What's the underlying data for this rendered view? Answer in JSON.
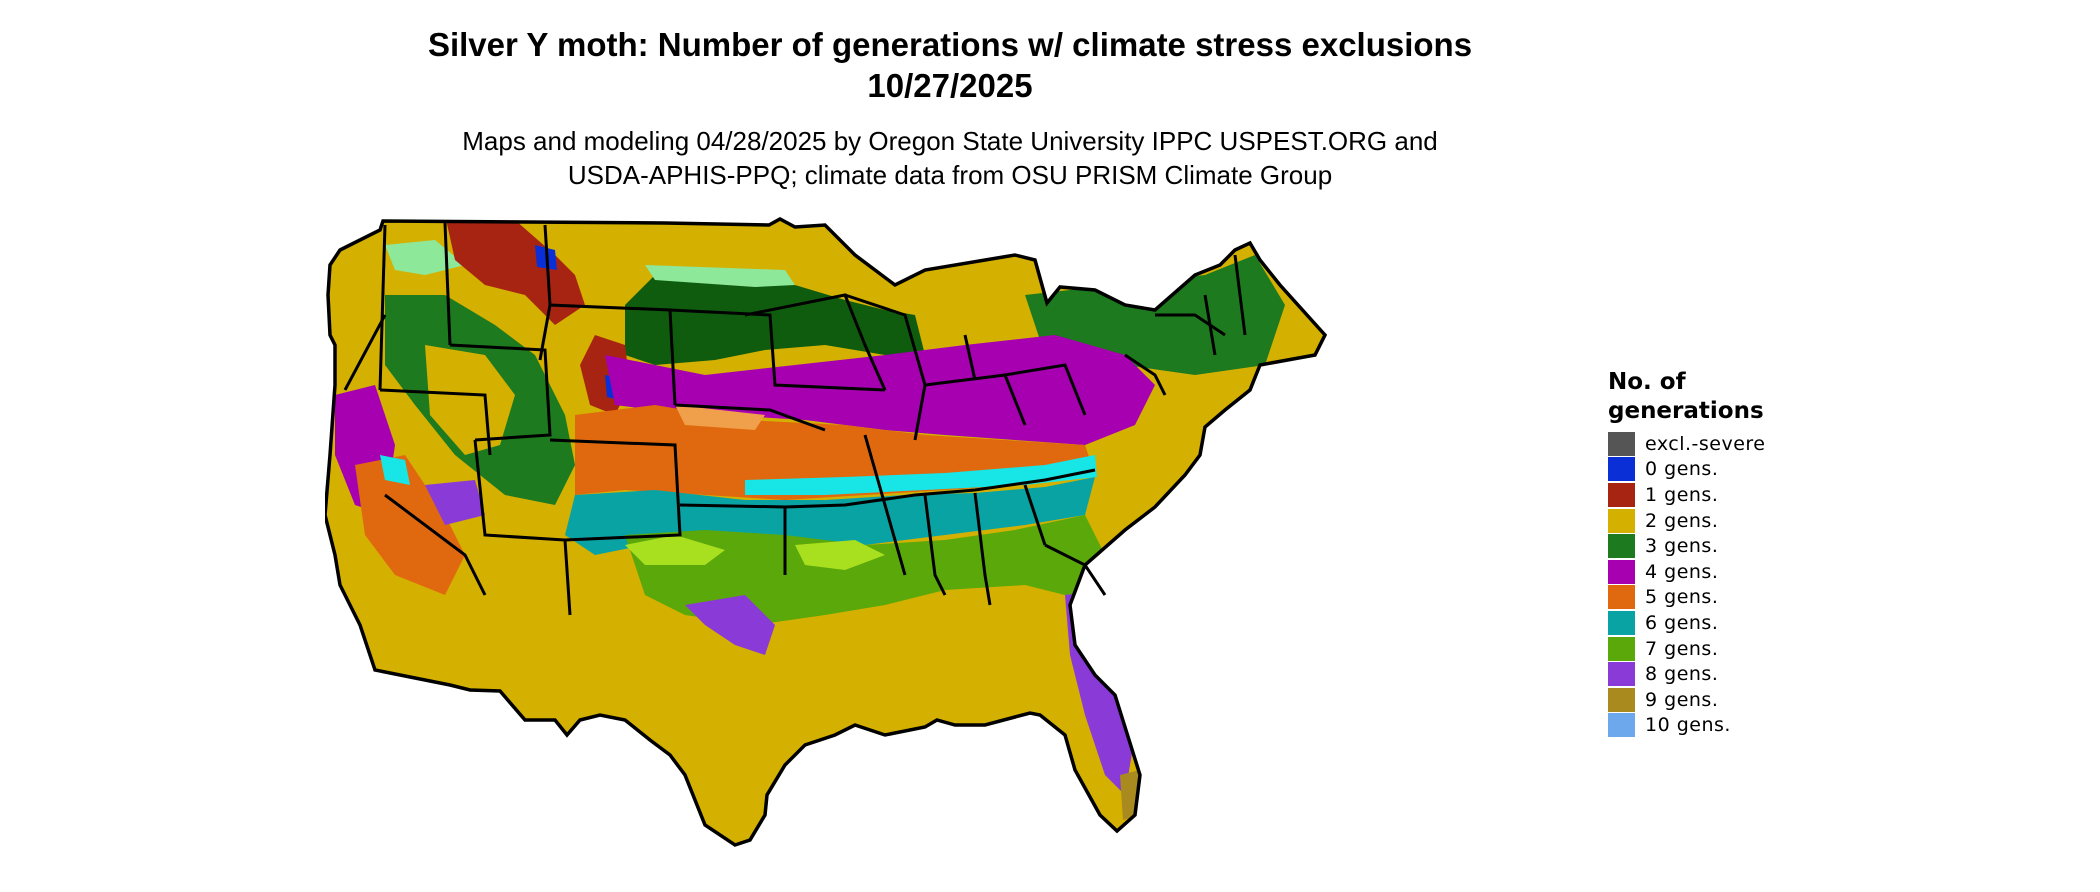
{
  "title": {
    "line1": "Silver Y moth: Number of generations w/ climate stress exclusions",
    "line2": "10/27/2025"
  },
  "subtitle": {
    "line1": "Maps and modeling 04/28/2025 by Oregon State University IPPC USPEST.ORG and",
    "line2": "USDA-APHIS-PPQ; climate data from OSU PRISM Climate Group"
  },
  "legend": {
    "title_line1": "No. of",
    "title_line2": "generations",
    "items": [
      {
        "label": "excl.-severe",
        "color": "#555555"
      },
      {
        "label": "0 gens.",
        "color": "#0a2fd6"
      },
      {
        "label": "1 gens.",
        "color": "#a82412"
      },
      {
        "label": "2 gens.",
        "color": "#d4b000"
      },
      {
        "label": "3 gens.",
        "color": "#1e7a1e"
      },
      {
        "label": "4 gens.",
        "color": "#a600b0"
      },
      {
        "label": "5 gens.",
        "color": "#e0690f"
      },
      {
        "label": "6 gens.",
        "color": "#0aa3a3"
      },
      {
        "label": "7 gens.",
        "color": "#5aa80a"
      },
      {
        "label": "8 gens.",
        "color": "#8a3ad6"
      },
      {
        "label": "9 gens.",
        "color": "#a88a1e"
      },
      {
        "label": "10 gens.",
        "color": "#6ea8ec"
      }
    ]
  },
  "map_colors": {
    "gen0": "#0a2fd6",
    "gen1": "#a82412",
    "gen2": "#d4b000",
    "gen3": "#1e7a1e",
    "gen3_dark": "#0f5c0f",
    "gen4": "#a600b0",
    "gen5": "#e0690f",
    "gen5_light": "#f0a04a",
    "gen6": "#0aa3a3",
    "gen6_light": "#18e6e6",
    "gen7": "#5aa80a",
    "gen7_light": "#a8e020",
    "gen8": "#8a3ad6",
    "gen9": "#a88a1e",
    "mint": "#8ee89a"
  }
}
